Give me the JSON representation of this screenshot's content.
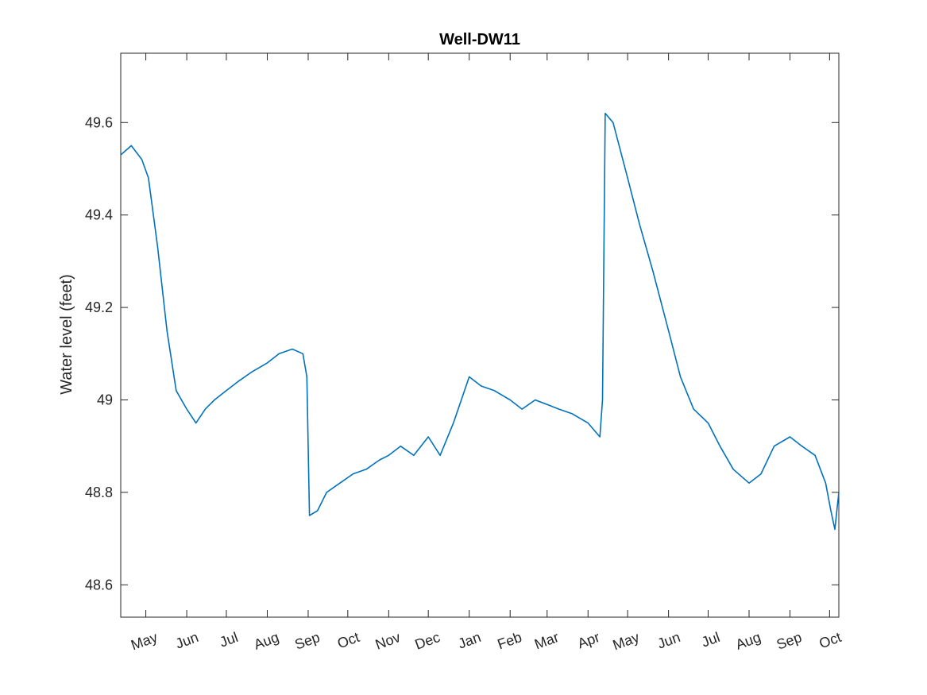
{
  "chart_data": {
    "type": "line",
    "title": "Well-DW11",
    "xlabel": "",
    "ylabel": "Water level (feet)",
    "ylim": [
      48.53,
      49.75
    ],
    "xlim": [
      "2021-04-12",
      "2022-10-08"
    ],
    "grid": false,
    "legend": "none",
    "line_color": "#0072BD",
    "y_ticks": [
      {
        "value": 48.6,
        "label": "48.6"
      },
      {
        "value": 48.8,
        "label": "48.8"
      },
      {
        "value": 49.0,
        "label": "49"
      },
      {
        "value": 49.2,
        "label": "49.2"
      },
      {
        "value": 49.4,
        "label": "49.4"
      },
      {
        "value": 49.6,
        "label": "49.6"
      }
    ],
    "x_ticks": [
      {
        "date": "2021-05-01",
        "label": "May"
      },
      {
        "date": "2021-06-01",
        "label": "Jun"
      },
      {
        "date": "2021-07-01",
        "label": "Jul"
      },
      {
        "date": "2021-08-01",
        "label": "Aug"
      },
      {
        "date": "2021-09-01",
        "label": "Sep"
      },
      {
        "date": "2021-10-01",
        "label": "Oct"
      },
      {
        "date": "2021-11-01",
        "label": "Nov"
      },
      {
        "date": "2021-12-01",
        "label": "Dec"
      },
      {
        "date": "2022-01-01",
        "label": "Jan"
      },
      {
        "date": "2022-02-01",
        "label": "Feb"
      },
      {
        "date": "2022-03-01",
        "label": "Mar"
      },
      {
        "date": "2022-04-01",
        "label": "Apr"
      },
      {
        "date": "2022-05-01",
        "label": "May"
      },
      {
        "date": "2022-06-01",
        "label": "Jun"
      },
      {
        "date": "2022-07-01",
        "label": "Jul"
      },
      {
        "date": "2022-08-01",
        "label": "Aug"
      },
      {
        "date": "2022-09-01",
        "label": "Sep"
      },
      {
        "date": "2022-10-01",
        "label": "Oct"
      }
    ],
    "series": [
      {
        "x": [
          "2021-04-12",
          "2021-04-20",
          "2021-04-28",
          "2021-05-03",
          "2021-05-10",
          "2021-05-17",
          "2021-05-24",
          "2021-06-01",
          "2021-06-08",
          "2021-06-15",
          "2021-06-22",
          "2021-07-01",
          "2021-07-10",
          "2021-07-20",
          "2021-08-01",
          "2021-08-10",
          "2021-08-20",
          "2021-08-28",
          "2021-08-31",
          "2021-09-02",
          "2021-09-08",
          "2021-09-15",
          "2021-09-25",
          "2021-10-05",
          "2021-10-15",
          "2021-10-25",
          "2021-11-01",
          "2021-11-10",
          "2021-11-20",
          "2021-12-01",
          "2021-12-10",
          "2021-12-20",
          "2022-01-01",
          "2022-01-10",
          "2022-01-20",
          "2022-02-01",
          "2022-02-10",
          "2022-02-20",
          "2022-03-01",
          "2022-03-10",
          "2022-03-20",
          "2022-04-01",
          "2022-04-10",
          "2022-04-12",
          "2022-04-14",
          "2022-04-20",
          "2022-05-01",
          "2022-05-10",
          "2022-05-20",
          "2022-06-01",
          "2022-06-10",
          "2022-06-20",
          "2022-07-01",
          "2022-07-10",
          "2022-07-20",
          "2022-08-01",
          "2022-08-10",
          "2022-08-20",
          "2022-09-01",
          "2022-09-10",
          "2022-09-20",
          "2022-09-28",
          "2022-10-02",
          "2022-10-05",
          "2022-10-08"
        ],
        "values": [
          49.53,
          49.55,
          49.52,
          49.48,
          49.33,
          49.15,
          49.02,
          48.98,
          48.95,
          48.98,
          49.0,
          49.02,
          49.04,
          49.06,
          49.08,
          49.1,
          49.11,
          49.1,
          49.05,
          48.75,
          48.76,
          48.8,
          48.82,
          48.84,
          48.85,
          48.87,
          48.88,
          48.9,
          48.88,
          48.92,
          48.88,
          48.95,
          49.05,
          49.03,
          49.02,
          49.0,
          48.98,
          49.0,
          48.99,
          48.98,
          48.97,
          48.95,
          48.92,
          49.0,
          49.62,
          49.6,
          49.48,
          49.38,
          49.28,
          49.15,
          49.05,
          48.98,
          48.95,
          48.9,
          48.85,
          48.82,
          48.84,
          48.9,
          48.92,
          48.9,
          48.88,
          48.82,
          48.76,
          48.72,
          48.8
        ]
      }
    ]
  }
}
